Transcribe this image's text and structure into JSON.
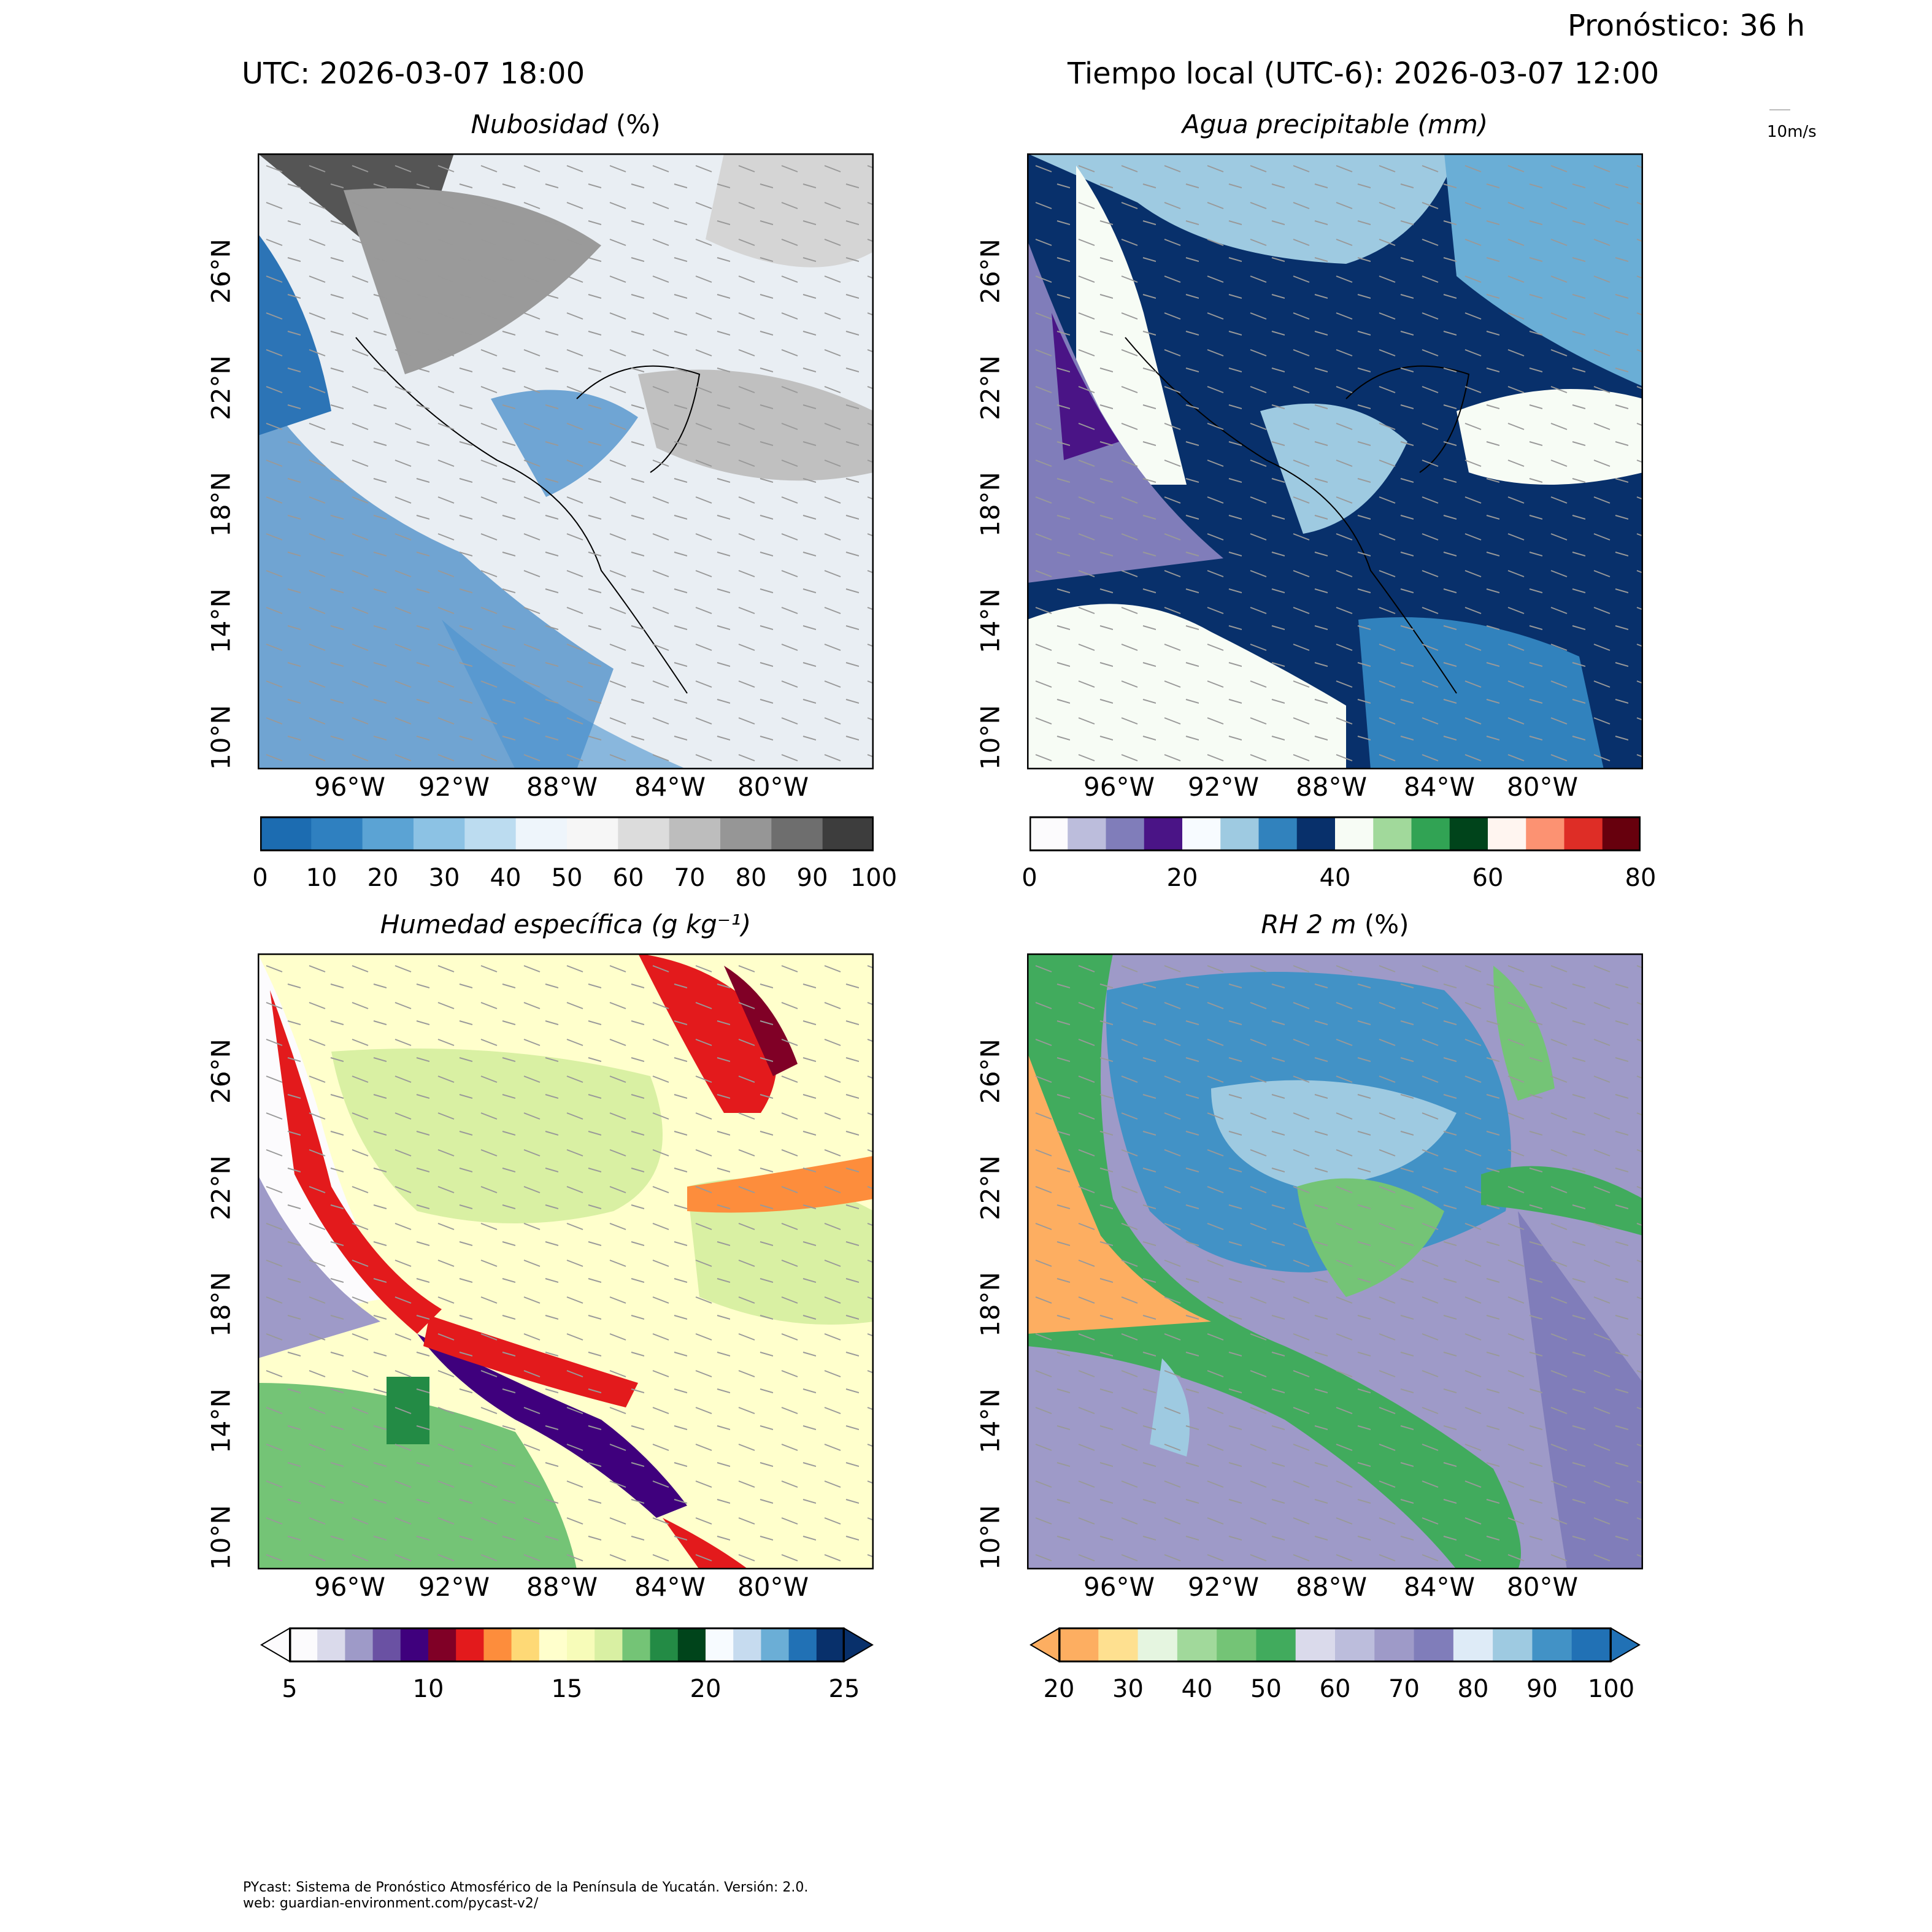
{
  "header": {
    "forecast": "Pronóstico: 36 h",
    "utc": "UTC:  2026-03-07 18:00",
    "local": "Tiempo local (UTC-6): 2026-03-07 12:00",
    "wind_ref_label": "10m/s"
  },
  "axes": {
    "lat_labels": [
      "26°N",
      "22°N",
      "18°N",
      "14°N",
      "10°N"
    ],
    "lon_labels": [
      "96°W",
      "92°W",
      "88°W",
      "84°W",
      "80°W"
    ]
  },
  "panels": [
    {
      "title_main": "Nubosidad",
      "title_unit": "(%)",
      "colorbar": {
        "min": 0,
        "max": 100,
        "ticks": [
          "0",
          "10",
          "20",
          "30",
          "40",
          "50",
          "60",
          "70",
          "80",
          "90",
          "100"
        ],
        "colors": [
          "#1c6cb1",
          "#2f80c0",
          "#5ba3d4",
          "#8cc2e4",
          "#bcdcf0",
          "#eef5fb",
          "#f6f6f6",
          "#dcdcdc",
          "#bdbdbd",
          "#969696",
          "#6e6e6e",
          "#3d3d3d"
        ]
      }
    },
    {
      "title_main": "Agua precipitable",
      "title_unit": "(mm)",
      "colorbar": {
        "min": 0,
        "max": 80,
        "ticks": [
          "0",
          "20",
          "40",
          "60",
          "80"
        ],
        "colors": [
          "#fcfbfd",
          "#bcbddc",
          "#807dba",
          "#4a1486",
          "#f7fbff",
          "#9ecae1",
          "#3182bd",
          "#08306b",
          "#f7fcf5",
          "#a1d99b",
          "#31a354",
          "#00441b",
          "#fff5f0",
          "#fc9272",
          "#de2d26",
          "#67000d"
        ]
      }
    },
    {
      "title_main": "Humedad específica",
      "title_unit": "(g kg⁻¹)",
      "colorbar": {
        "min": 5,
        "max": 25,
        "ticks": [
          "5",
          "10",
          "15",
          "20",
          "25"
        ],
        "colors": [
          "#fcfbfd",
          "#dadaeb",
          "#9e9ac8",
          "#6a51a3",
          "#3f007d",
          "#800026",
          "#e31a1c",
          "#fd8d3c",
          "#fed976",
          "#ffffcc",
          "#f7fcb9",
          "#d9f0a3",
          "#74c476",
          "#238b45",
          "#00441b",
          "#f7fbff",
          "#c6dbef",
          "#6baed6",
          "#2171b5",
          "#08306b"
        ]
      }
    },
    {
      "title_main": "RH 2 m",
      "title_unit": "(%)",
      "colorbar": {
        "min": 20,
        "max": 100,
        "ticks": [
          "20",
          "30",
          "40",
          "50",
          "60",
          "70",
          "80",
          "90",
          "100"
        ],
        "colors": [
          "#fdae61",
          "#fee090",
          "#e5f5e0",
          "#a1d99b",
          "#74c476",
          "#41ab5d",
          "#dadaeb",
          "#bcbddc",
          "#9e9ac8",
          "#807dba",
          "#deebf7",
          "#9ecae1",
          "#4292c6",
          "#2171b5"
        ]
      }
    }
  ],
  "footer": {
    "line1": "PYcast: Sistema de Pronóstico Atmosférico de la Península de Yucatán. Versión: 2.0.",
    "line2": "web: guardian-environment.com/pycast-v2/"
  }
}
